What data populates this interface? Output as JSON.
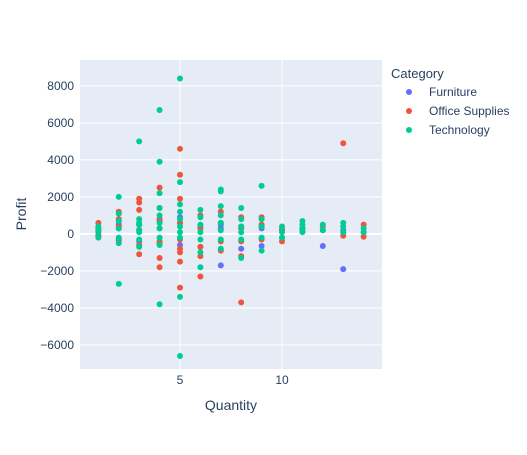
{
  "chart_data": {
    "type": "scatter",
    "title": "",
    "xlabel": "Quantity",
    "ylabel": "Profit",
    "xlim": [
      0.1,
      14.9
    ],
    "ylim": [
      -7300,
      9400
    ],
    "x_ticks": [
      5,
      10
    ],
    "y_ticks": [
      -6000,
      -4000,
      -2000,
      0,
      2000,
      4000,
      6000,
      8000
    ],
    "x_tick_labels": [
      "5",
      "10"
    ],
    "y_tick_labels": [
      "−6000",
      "−4000",
      "−2000",
      "0",
      "2000",
      "4000",
      "6000",
      "8000"
    ],
    "grid": true,
    "legend": {
      "title": "Category",
      "placement": "top-right outside"
    },
    "series": [
      {
        "name": "Furniture",
        "color": "#636efa",
        "points": [
          [
            1,
            150
          ],
          [
            1,
            -80
          ],
          [
            2,
            300
          ],
          [
            2,
            -350
          ],
          [
            2,
            520
          ],
          [
            3,
            500
          ],
          [
            3,
            -400
          ],
          [
            3,
            220
          ],
          [
            4,
            700
          ],
          [
            4,
            -500
          ],
          [
            4,
            300
          ],
          [
            5,
            600
          ],
          [
            5,
            -600
          ],
          [
            5,
            900
          ],
          [
            6,
            400
          ],
          [
            6,
            -700
          ],
          [
            7,
            500
          ],
          [
            7,
            -1700
          ],
          [
            7,
            300
          ],
          [
            8,
            -800
          ],
          [
            8,
            400
          ],
          [
            9,
            -650
          ],
          [
            9,
            300
          ],
          [
            10,
            -200
          ],
          [
            10,
            250
          ],
          [
            11,
            150
          ],
          [
            12,
            -650
          ],
          [
            12,
            200
          ],
          [
            13,
            -1900
          ],
          [
            13,
            200
          ],
          [
            14,
            100
          ]
        ]
      },
      {
        "name": "Office Supplies",
        "color": "#ef553b",
        "points": [
          [
            1,
            600
          ],
          [
            1,
            300
          ],
          [
            1,
            -100
          ],
          [
            2,
            1200
          ],
          [
            2,
            800
          ],
          [
            2,
            -300
          ],
          [
            2,
            400
          ],
          [
            3,
            1900
          ],
          [
            3,
            1700
          ],
          [
            3,
            1300
          ],
          [
            3,
            -1100
          ],
          [
            3,
            -600
          ],
          [
            3,
            500
          ],
          [
            4,
            2500
          ],
          [
            4,
            1400
          ],
          [
            4,
            -1300
          ],
          [
            4,
            -1800
          ],
          [
            4,
            800
          ],
          [
            4,
            -400
          ],
          [
            5,
            4600
          ],
          [
            5,
            3200
          ],
          [
            5,
            1900
          ],
          [
            5,
            -800
          ],
          [
            5,
            -1000
          ],
          [
            5,
            -1500
          ],
          [
            5,
            -2900
          ],
          [
            5,
            600
          ],
          [
            5,
            -300
          ],
          [
            6,
            1000
          ],
          [
            6,
            -1200
          ],
          [
            6,
            -2300
          ],
          [
            6,
            -700
          ],
          [
            6,
            300
          ],
          [
            7,
            1200
          ],
          [
            7,
            -900
          ],
          [
            7,
            600
          ],
          [
            7,
            -400
          ],
          [
            8,
            900
          ],
          [
            8,
            -400
          ],
          [
            8,
            -1200
          ],
          [
            8,
            -3700
          ],
          [
            8,
            300
          ],
          [
            9,
            900
          ],
          [
            9,
            -300
          ],
          [
            9,
            500
          ],
          [
            10,
            -400
          ],
          [
            10,
            200
          ],
          [
            11,
            300
          ],
          [
            12,
            400
          ],
          [
            13,
            4900
          ],
          [
            13,
            -100
          ],
          [
            14,
            500
          ],
          [
            14,
            -150
          ]
        ]
      },
      {
        "name": "Technology",
        "color": "#00cc96",
        "points": [
          [
            1,
            400
          ],
          [
            1,
            100
          ],
          [
            1,
            -200
          ],
          [
            1,
            250
          ],
          [
            2,
            2000
          ],
          [
            2,
            1100
          ],
          [
            2,
            700
          ],
          [
            2,
            300
          ],
          [
            2,
            -200
          ],
          [
            2,
            -500
          ],
          [
            2,
            -2700
          ],
          [
            3,
            5000
          ],
          [
            3,
            800
          ],
          [
            3,
            500
          ],
          [
            3,
            200
          ],
          [
            3,
            -300
          ],
          [
            3,
            -700
          ],
          [
            3,
            100
          ],
          [
            3,
            600
          ],
          [
            4,
            6700
          ],
          [
            4,
            3900
          ],
          [
            4,
            2200
          ],
          [
            4,
            1400
          ],
          [
            4,
            1000
          ],
          [
            4,
            600
          ],
          [
            4,
            300
          ],
          [
            4,
            -200
          ],
          [
            4,
            -600
          ],
          [
            4,
            -3800
          ],
          [
            5,
            8400
          ],
          [
            5,
            2800
          ],
          [
            5,
            1600
          ],
          [
            5,
            1200
          ],
          [
            5,
            800
          ],
          [
            5,
            400
          ],
          [
            5,
            100
          ],
          [
            5,
            -200
          ],
          [
            5,
            -3400
          ],
          [
            5,
            -6600
          ],
          [
            6,
            1300
          ],
          [
            6,
            900
          ],
          [
            6,
            500
          ],
          [
            6,
            100
          ],
          [
            6,
            -300
          ],
          [
            6,
            -1000
          ],
          [
            6,
            -1800
          ],
          [
            7,
            2400
          ],
          [
            7,
            2300
          ],
          [
            7,
            1500
          ],
          [
            7,
            1000
          ],
          [
            7,
            600
          ],
          [
            7,
            200
          ],
          [
            7,
            -300
          ],
          [
            7,
            -800
          ],
          [
            8,
            1400
          ],
          [
            8,
            800
          ],
          [
            8,
            400
          ],
          [
            8,
            100
          ],
          [
            8,
            -300
          ],
          [
            8,
            -1300
          ],
          [
            9,
            2600
          ],
          [
            9,
            800
          ],
          [
            9,
            400
          ],
          [
            9,
            -200
          ],
          [
            9,
            -900
          ],
          [
            10,
            400
          ],
          [
            10,
            100
          ],
          [
            10,
            -200
          ],
          [
            11,
            700
          ],
          [
            11,
            500
          ],
          [
            11,
            300
          ],
          [
            11,
            100
          ],
          [
            12,
            500
          ],
          [
            12,
            200
          ],
          [
            13,
            600
          ],
          [
            13,
            400
          ],
          [
            13,
            100
          ],
          [
            14,
            300
          ],
          [
            14,
            100
          ]
        ]
      }
    ]
  }
}
